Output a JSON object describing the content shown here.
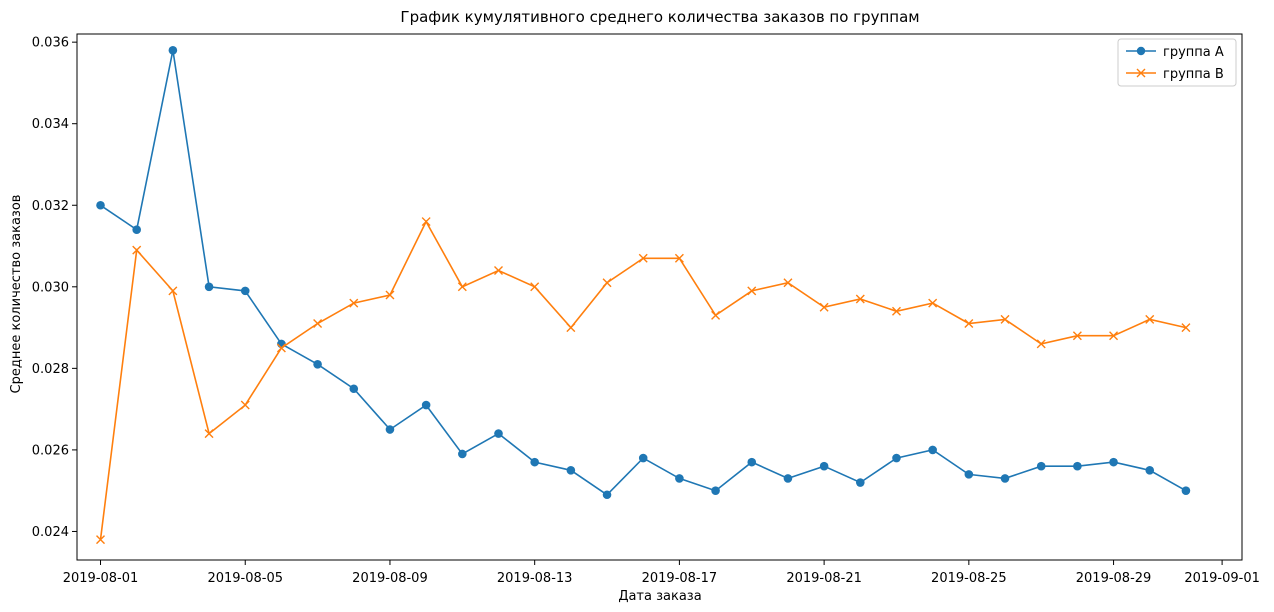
{
  "chart_data": {
    "type": "line",
    "title": "График кумулятивного среднего количества заказов по группам",
    "xlabel": "Дата заказа",
    "ylabel": "Среднее количество заказов",
    "x": [
      "2019-08-01",
      "2019-08-02",
      "2019-08-03",
      "2019-08-04",
      "2019-08-05",
      "2019-08-06",
      "2019-08-07",
      "2019-08-08",
      "2019-08-09",
      "2019-08-10",
      "2019-08-11",
      "2019-08-12",
      "2019-08-13",
      "2019-08-14",
      "2019-08-15",
      "2019-08-16",
      "2019-08-17",
      "2019-08-18",
      "2019-08-19",
      "2019-08-20",
      "2019-08-21",
      "2019-08-22",
      "2019-08-23",
      "2019-08-24",
      "2019-08-25",
      "2019-08-26",
      "2019-08-27",
      "2019-08-28",
      "2019-08-29",
      "2019-08-30",
      "2019-08-31"
    ],
    "series": [
      {
        "name": "группа A",
        "color": "#1f77b4",
        "marker": "circle",
        "values": [
          0.032,
          0.0314,
          0.0358,
          0.03,
          0.0299,
          0.0286,
          0.0281,
          0.0275,
          0.0265,
          0.0271,
          0.0259,
          0.0264,
          0.0257,
          0.0255,
          0.0249,
          0.0258,
          0.0253,
          0.025,
          0.0257,
          0.0253,
          0.0256,
          0.0252,
          0.0258,
          0.026,
          0.0254,
          0.0253,
          0.0256,
          0.0256,
          0.0257,
          0.0255,
          0.025
        ]
      },
      {
        "name": "группа B",
        "color": "#ff7f0e",
        "marker": "x",
        "values": [
          0.0238,
          0.0309,
          0.0299,
          0.0264,
          0.0271,
          0.0285,
          0.0291,
          0.0296,
          0.0298,
          0.0316,
          0.03,
          0.0304,
          0.03,
          0.029,
          0.0301,
          0.0307,
          0.0307,
          0.0293,
          0.0299,
          0.0301,
          0.0295,
          0.0297,
          0.0294,
          0.0296,
          0.0291,
          0.0292,
          0.0286,
          0.0288,
          0.0288,
          0.0292,
          0.029
        ]
      }
    ],
    "ylim": [
      0.0233,
      0.0362
    ],
    "xlim": [
      "2019-07-30",
      "2019-09-01"
    ],
    "y_ticks": [
      "0.024",
      "0.026",
      "0.028",
      "0.030",
      "0.032",
      "0.034",
      "0.036"
    ],
    "x_ticks": [
      "2019-08-01",
      "2019-08-05",
      "2019-08-09",
      "2019-08-13",
      "2019-08-17",
      "2019-08-21",
      "2019-08-25",
      "2019-08-29",
      "2019-09-01"
    ],
    "grid": false,
    "legend_position": "top-right"
  }
}
